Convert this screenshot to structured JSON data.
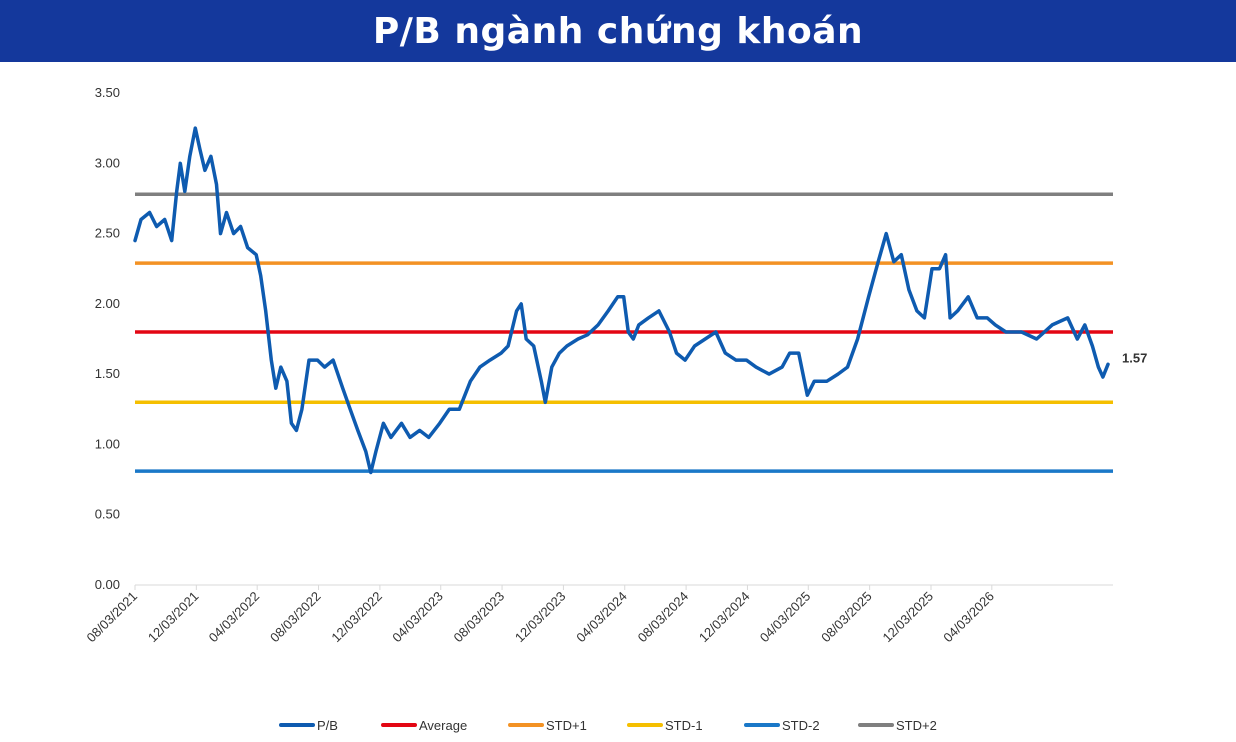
{
  "header": {
    "title": "P/B ngành chứng khoán"
  },
  "colors": {
    "header_bg": "#14389c",
    "pb": "#0e5bb0",
    "average": "#e30613",
    "std_plus_1": "#f39224",
    "std_minus_1": "#f5bf00",
    "std_minus_2": "#1a78c8",
    "std_plus_2": "#7f7f7f"
  },
  "chart_data": {
    "type": "line",
    "title": "P/B ngành chứng khoán",
    "xlabel": "",
    "ylabel": "",
    "ylim": [
      0,
      3.5
    ],
    "yticks": [
      "0.00",
      "0.50",
      "1.00",
      "1.50",
      "2.00",
      "2.50",
      "3.00",
      "3.50"
    ],
    "xticks": [
      "08/03/2021",
      "12/03/2021",
      "04/03/2022",
      "08/03/2022",
      "12/03/2022",
      "04/03/2023",
      "08/03/2023",
      "12/03/2023",
      "04/03/2024",
      "08/03/2024",
      "12/03/2024",
      "04/03/2025",
      "08/03/2025",
      "12/03/2025",
      "04/03/2026"
    ],
    "x_end": "11/30/2026",
    "grid": false,
    "legend_position": "bottom",
    "last_value_label": "1.57",
    "reference_lines": [
      {
        "name": "Average",
        "value": 1.8
      },
      {
        "name": "STD+1",
        "value": 2.29
      },
      {
        "name": "STD-1",
        "value": 1.3
      },
      {
        "name": "STD-2",
        "value": 0.81
      },
      {
        "name": "STD+2",
        "value": 2.78
      }
    ],
    "series": [
      {
        "name": "P/B",
        "points": [
          [
            "08/03/2021",
            2.45
          ],
          [
            "08/15/2021",
            2.6
          ],
          [
            "09/01/2021",
            2.65
          ],
          [
            "09/15/2021",
            2.55
          ],
          [
            "10/01/2021",
            2.6
          ],
          [
            "10/15/2021",
            2.45
          ],
          [
            "10/25/2021",
            2.8
          ],
          [
            "11/01/2021",
            3.0
          ],
          [
            "11/10/2021",
            2.8
          ],
          [
            "11/20/2021",
            3.05
          ],
          [
            "12/01/2021",
            3.25
          ],
          [
            "12/10/2021",
            3.1
          ],
          [
            "12/20/2021",
            2.95
          ],
          [
            "01/01/2022",
            3.05
          ],
          [
            "01/12/2022",
            2.85
          ],
          [
            "01/20/2022",
            2.5
          ],
          [
            "02/01/2022",
            2.65
          ],
          [
            "02/15/2022",
            2.5
          ],
          [
            "03/01/2022",
            2.55
          ],
          [
            "03/15/2022",
            2.4
          ],
          [
            "04/01/2022",
            2.35
          ],
          [
            "04/10/2022",
            2.2
          ],
          [
            "04/20/2022",
            1.95
          ],
          [
            "05/01/2022",
            1.6
          ],
          [
            "05/10/2022",
            1.4
          ],
          [
            "05/20/2022",
            1.55
          ],
          [
            "06/01/2022",
            1.45
          ],
          [
            "06/10/2022",
            1.15
          ],
          [
            "06/20/2022",
            1.1
          ],
          [
            "07/01/2022",
            1.25
          ],
          [
            "07/15/2022",
            1.6
          ],
          [
            "08/01/2022",
            1.6
          ],
          [
            "08/15/2022",
            1.55
          ],
          [
            "09/01/2022",
            1.6
          ],
          [
            "09/20/2022",
            1.4
          ],
          [
            "10/05/2022",
            1.25
          ],
          [
            "10/20/2022",
            1.1
          ],
          [
            "11/05/2022",
            0.95
          ],
          [
            "11/15/2022",
            0.8
          ],
          [
            "11/25/2022",
            0.95
          ],
          [
            "12/10/2022",
            1.15
          ],
          [
            "12/25/2022",
            1.05
          ],
          [
            "01/15/2023",
            1.15
          ],
          [
            "02/01/2023",
            1.05
          ],
          [
            "02/20/2023",
            1.1
          ],
          [
            "03/10/2023",
            1.05
          ],
          [
            "04/01/2023",
            1.15
          ],
          [
            "04/20/2023",
            1.25
          ],
          [
            "05/10/2023",
            1.25
          ],
          [
            "06/01/2023",
            1.45
          ],
          [
            "06/20/2023",
            1.55
          ],
          [
            "07/10/2023",
            1.6
          ],
          [
            "08/01/2023",
            1.65
          ],
          [
            "08/15/2023",
            1.7
          ],
          [
            "09/01/2023",
            1.95
          ],
          [
            "09/10/2023",
            2.0
          ],
          [
            "09/20/2023",
            1.75
          ],
          [
            "10/05/2023",
            1.7
          ],
          [
            "10/20/2023",
            1.45
          ],
          [
            "10/28/2023",
            1.3
          ],
          [
            "11/10/2023",
            1.55
          ],
          [
            "11/25/2023",
            1.65
          ],
          [
            "12/10/2023",
            1.7
          ],
          [
            "01/01/2024",
            1.75
          ],
          [
            "01/20/2024",
            1.78
          ],
          [
            "02/10/2024",
            1.85
          ],
          [
            "03/01/2024",
            1.95
          ],
          [
            "03/20/2024",
            2.05
          ],
          [
            "04/01/2024",
            2.05
          ],
          [
            "04/10/2024",
            1.8
          ],
          [
            "04/20/2024",
            1.75
          ],
          [
            "05/01/2024",
            1.85
          ],
          [
            "05/20/2024",
            1.9
          ],
          [
            "06/10/2024",
            1.95
          ],
          [
            "07/01/2024",
            1.8
          ],
          [
            "07/15/2024",
            1.65
          ],
          [
            "08/01/2024",
            1.6
          ],
          [
            "08/20/2024",
            1.7
          ],
          [
            "09/10/2024",
            1.75
          ],
          [
            "10/01/2024",
            1.8
          ],
          [
            "10/20/2024",
            1.65
          ],
          [
            "11/10/2024",
            1.6
          ],
          [
            "12/01/2024",
            1.6
          ],
          [
            "12/20/2024",
            1.55
          ],
          [
            "01/15/2025",
            1.5
          ],
          [
            "02/10/2025",
            1.55
          ],
          [
            "02/25/2025",
            1.65
          ],
          [
            "03/15/2025",
            1.65
          ],
          [
            "04/01/2025",
            1.35
          ],
          [
            "04/15/2025",
            1.45
          ],
          [
            "05/10/2025",
            1.45
          ],
          [
            "06/01/2025",
            1.5
          ],
          [
            "06/20/2025",
            1.55
          ],
          [
            "07/10/2025",
            1.75
          ],
          [
            "08/01/2025",
            2.05
          ],
          [
            "08/20/2025",
            2.3
          ],
          [
            "09/05/2025",
            2.5
          ],
          [
            "09/20/2025",
            2.3
          ],
          [
            "10/05/2025",
            2.35
          ],
          [
            "10/20/2025",
            2.1
          ],
          [
            "11/05/2025",
            1.95
          ],
          [
            "11/20/2025",
            1.9
          ],
          [
            "12/05/2025",
            2.25
          ],
          [
            "12/20/2025",
            2.25
          ],
          [
            "01/01/2026",
            2.35
          ],
          [
            "01/10/2026",
            1.9
          ],
          [
            "01/25/2026",
            1.95
          ],
          [
            "02/15/2026",
            2.05
          ],
          [
            "03/05/2026",
            1.9
          ],
          [
            "03/25/2026",
            1.9
          ],
          [
            "04/10/2026",
            1.85
          ],
          [
            "05/01/2026",
            1.8
          ],
          [
            "06/01/2026",
            1.8
          ],
          [
            "07/01/2026",
            1.75
          ],
          [
            "08/01/2026",
            1.85
          ],
          [
            "09/01/2026",
            1.9
          ],
          [
            "09/20/2026",
            1.75
          ],
          [
            "10/05/2026",
            1.85
          ],
          [
            "10/20/2026",
            1.7
          ],
          [
            "11/01/2026",
            1.55
          ],
          [
            "11/10/2026",
            1.48
          ],
          [
            "11/20/2026",
            1.57
          ]
        ]
      },
      {
        "name": "Average"
      },
      {
        "name": "STD+1"
      },
      {
        "name": "STD-1"
      },
      {
        "name": "STD-2"
      },
      {
        "name": "STD+2"
      }
    ]
  }
}
